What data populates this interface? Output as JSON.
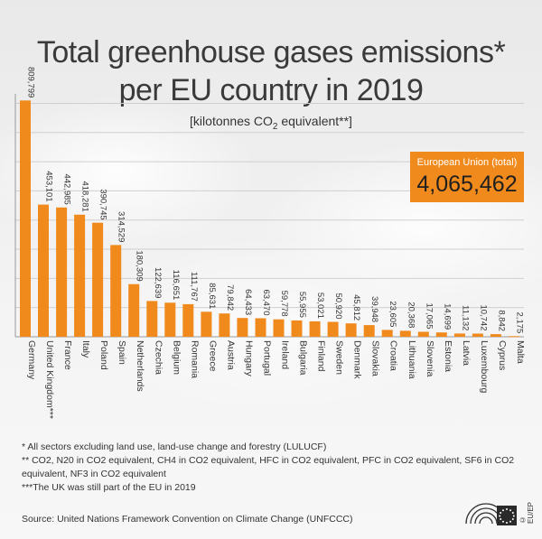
{
  "title_line1": "Total greenhouse gases emissions*",
  "title_line2": "per EU country in 2019",
  "unit_prefix": "[kilotonnes CO",
  "unit_sub": "2",
  "unit_suffix": " equivalent**]",
  "eu_total": {
    "label": "European Union (total)",
    "value": "4,065,462"
  },
  "chart_data": {
    "type": "bar",
    "title": "Total greenhouse gases emissions* per EU country in 2019",
    "ylabel": "[kilotonnes CO2 equivalent**]",
    "xlabel": "",
    "ylim": [
      0,
      820000
    ],
    "grid": true,
    "bar_color": "#f08a1c",
    "categories": [
      "Germany",
      "United Kingdom***",
      "France",
      "Italy",
      "Poland",
      "Spain",
      "Netherlands",
      "Czechia",
      "Belgium",
      "Romania",
      "Greece",
      "Austria",
      "Hungary",
      "Portugal",
      "Ireland",
      "Bulgaria",
      "Finland",
      "Sweden",
      "Denmark",
      "Slovakia",
      "Croatia",
      "Lithuania",
      "Slovenia",
      "Estonia",
      "Latvia",
      "Luxembourg",
      "Cyprus",
      "Malta"
    ],
    "values": [
      809799,
      453101,
      442985,
      418281,
      390745,
      314529,
      180309,
      122639,
      116651,
      111767,
      85631,
      79842,
      64433,
      63470,
      59778,
      55955,
      53021,
      50920,
      45812,
      39948,
      23605,
      20368,
      17065,
      14699,
      11132,
      10742,
      8842,
      2175
    ],
    "value_labels": [
      "809,799",
      "453,101",
      "442,985",
      "418,281",
      "390,745",
      "314,529",
      "180,309",
      "122,639",
      "116,651",
      "111,767",
      "85,631",
      "79,842",
      "64,433",
      "63,470",
      "59,778",
      "55,955",
      "53,021",
      "50,920",
      "45,812",
      "39,948",
      "23,605",
      "20,368",
      "17,065",
      "14,699",
      "11,132",
      "10,742",
      "8,842",
      "2,175"
    ]
  },
  "notes": [
    "*  All sectors excluding land use, land-use change and forestry (LULUCF)",
    "** CO2, N20 in CO2 equivalent, CH4 in CO2 equivalent, HFC in CO2 equivalent, PFC in CO2 equivalent, SF6 in CO2 equivalent, NF3 in CO2 equivalent",
    "***The UK was still part of the EU in 2019"
  ],
  "source": "Source: United Nations Framework Convention on Climate Change (UNFCCC)",
  "logo_text": "© EU/EP"
}
